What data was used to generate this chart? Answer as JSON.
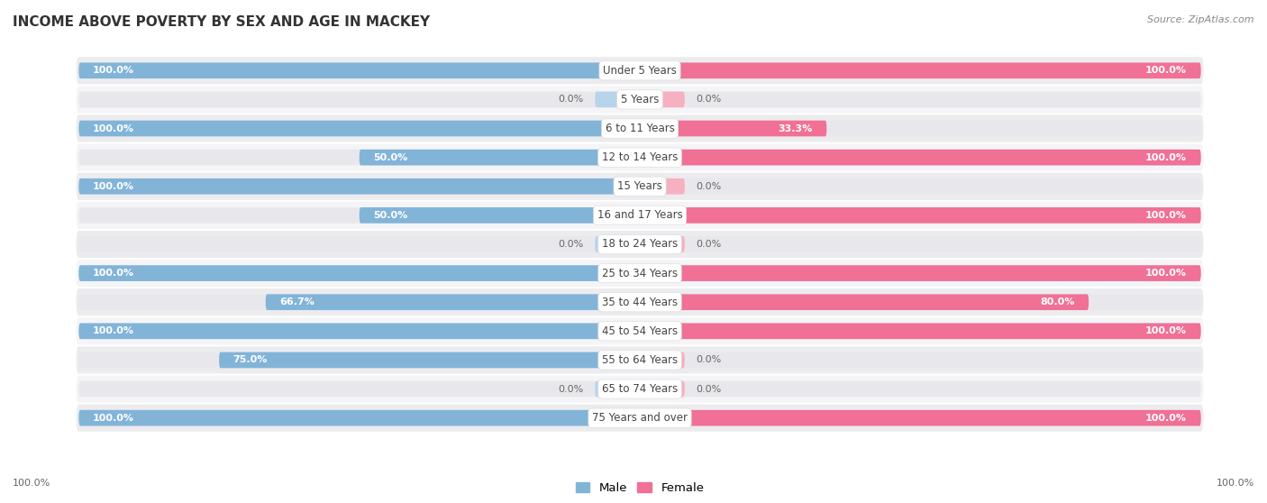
{
  "title": "INCOME ABOVE POVERTY BY SEX AND AGE IN MACKEY",
  "source": "Source: ZipAtlas.com",
  "categories": [
    "Under 5 Years",
    "5 Years",
    "6 to 11 Years",
    "12 to 14 Years",
    "15 Years",
    "16 and 17 Years",
    "18 to 24 Years",
    "25 to 34 Years",
    "35 to 44 Years",
    "45 to 54 Years",
    "55 to 64 Years",
    "65 to 74 Years",
    "75 Years and over"
  ],
  "male_values": [
    100.0,
    0.0,
    100.0,
    50.0,
    100.0,
    50.0,
    0.0,
    100.0,
    66.7,
    100.0,
    75.0,
    0.0,
    100.0
  ],
  "female_values": [
    100.0,
    0.0,
    33.3,
    100.0,
    0.0,
    100.0,
    0.0,
    100.0,
    80.0,
    100.0,
    0.0,
    0.0,
    100.0
  ],
  "male_color": "#82b4d8",
  "female_color": "#f07096",
  "male_color_light": "#b8d4ea",
  "female_color_light": "#f7b0c0",
  "male_label": "Male",
  "female_label": "Female",
  "track_color": "#e8e8ec",
  "row_bg_dark": "#ececef",
  "row_bg_light": "#f5f5f8",
  "title_fontsize": 11,
  "label_fontsize": 8.5,
  "value_fontsize": 8.0,
  "legend_fontsize": 9.5
}
